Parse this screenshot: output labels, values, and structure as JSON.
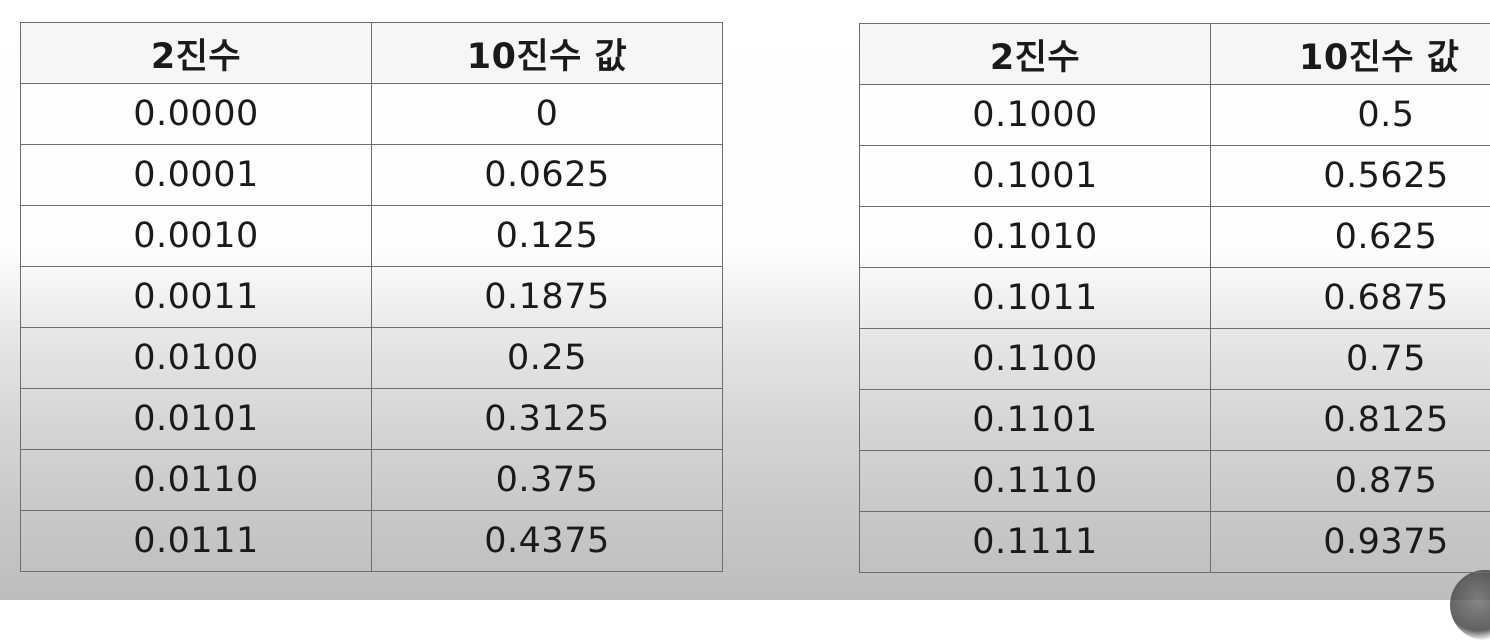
{
  "tables": [
    {
      "headers": [
        "2진수",
        "10진수 값"
      ],
      "rows": [
        [
          "0.0000",
          "0"
        ],
        [
          "0.0001",
          "0.0625"
        ],
        [
          "0.0010",
          "0.125"
        ],
        [
          "0.0011",
          "0.1875"
        ],
        [
          "0.0100",
          "0.25"
        ],
        [
          "0.0101",
          "0.3125"
        ],
        [
          "0.0110",
          "0.375"
        ],
        [
          "0.0111",
          "0.4375"
        ]
      ]
    },
    {
      "headers": [
        "2진수",
        "10진수 값"
      ],
      "rows": [
        [
          "0.1000",
          "0.5"
        ],
        [
          "0.1001",
          "0.5625"
        ],
        [
          "0.1010",
          "0.625"
        ],
        [
          "0.1011",
          "0.6875"
        ],
        [
          "0.1100",
          "0.75"
        ],
        [
          "0.1101",
          "0.8125"
        ],
        [
          "0.1110",
          "0.875"
        ],
        [
          "0.1111",
          "0.9375"
        ]
      ]
    }
  ]
}
